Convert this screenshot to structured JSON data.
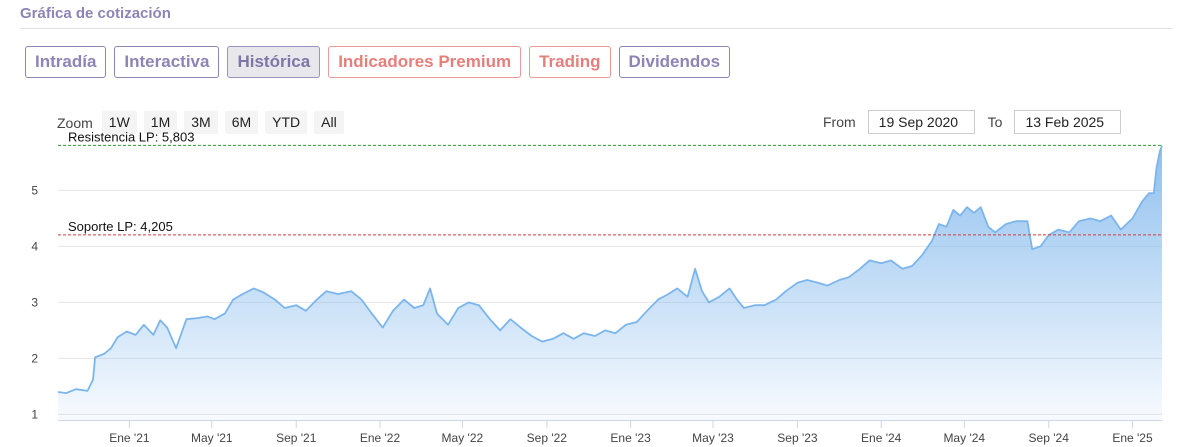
{
  "section": {
    "title": "Gráfica de cotización"
  },
  "tabs": [
    {
      "label": "Intradía",
      "style": "normal"
    },
    {
      "label": "Interactiva",
      "style": "normal"
    },
    {
      "label": "Histórica",
      "style": "active"
    },
    {
      "label": "Indicadores Premium",
      "style": "premium"
    },
    {
      "label": "Trading",
      "style": "premium"
    },
    {
      "label": "Dividendos",
      "style": "normal"
    }
  ],
  "zoom": {
    "label": "Zoom",
    "buttons": [
      "1W",
      "1M",
      "3M",
      "6M",
      "YTD",
      "All"
    ]
  },
  "range": {
    "from_label": "From",
    "from_value": "19 Sep 2020",
    "to_label": "To",
    "to_value": "13 Feb 2025"
  },
  "colors": {
    "series": "#7cb5ec",
    "resistance": "#2e9b2e",
    "support": "#d43c3c",
    "accent": "#8e84b6",
    "premium": "#e57f7b"
  },
  "chart_data": {
    "type": "area",
    "title": "",
    "xlabel": "",
    "ylabel": "",
    "xlim": [
      "2020-09-19",
      "2025-02-13"
    ],
    "ylim": [
      0.9,
      5.9
    ],
    "y_ticks": [
      1,
      2,
      3,
      4,
      5
    ],
    "x_ticks": [
      {
        "date": "2021-01-01",
        "label": "Ene '21"
      },
      {
        "date": "2021-05-01",
        "label": "May '21"
      },
      {
        "date": "2021-09-01",
        "label": "Sep '21"
      },
      {
        "date": "2022-01-01",
        "label": "Ene '22"
      },
      {
        "date": "2022-05-01",
        "label": "May '22"
      },
      {
        "date": "2022-09-01",
        "label": "Sep '22"
      },
      {
        "date": "2023-01-01",
        "label": "Ene '23"
      },
      {
        "date": "2023-05-01",
        "label": "May '23"
      },
      {
        "date": "2023-09-01",
        "label": "Sep '23"
      },
      {
        "date": "2024-01-01",
        "label": "Ene '24"
      },
      {
        "date": "2024-05-01",
        "label": "May '24"
      },
      {
        "date": "2024-09-01",
        "label": "Sep '24"
      },
      {
        "date": "2025-01-01",
        "label": "Ene '25"
      }
    ],
    "levels": [
      {
        "label": "Resistencia LP: 5,803",
        "value": 5.803,
        "kind": "resistance"
      },
      {
        "label": "Soporte LP: 4,205",
        "value": 4.205,
        "kind": "support"
      }
    ],
    "grid": true,
    "legend": "none",
    "series": [
      {
        "points": [
          [
            "2020-09-19",
            1.4
          ],
          [
            "2020-10-01",
            1.38
          ],
          [
            "2020-10-15",
            1.45
          ],
          [
            "2020-11-01",
            1.42
          ],
          [
            "2020-11-09",
            1.62
          ],
          [
            "2020-11-12",
            2.02
          ],
          [
            "2020-11-25",
            2.08
          ],
          [
            "2020-12-05",
            2.18
          ],
          [
            "2020-12-15",
            2.38
          ],
          [
            "2020-12-28",
            2.48
          ],
          [
            "2021-01-10",
            2.42
          ],
          [
            "2021-01-22",
            2.6
          ],
          [
            "2021-02-05",
            2.42
          ],
          [
            "2021-02-15",
            2.68
          ],
          [
            "2021-02-25",
            2.55
          ],
          [
            "2021-03-10",
            2.18
          ],
          [
            "2021-03-25",
            2.7
          ],
          [
            "2021-04-10",
            2.72
          ],
          [
            "2021-04-25",
            2.75
          ],
          [
            "2021-05-05",
            2.7
          ],
          [
            "2021-05-20",
            2.8
          ],
          [
            "2021-06-01",
            3.05
          ],
          [
            "2021-06-15",
            3.15
          ],
          [
            "2021-07-01",
            3.25
          ],
          [
            "2021-07-15",
            3.18
          ],
          [
            "2021-08-01",
            3.05
          ],
          [
            "2021-08-15",
            2.9
          ],
          [
            "2021-09-01",
            2.95
          ],
          [
            "2021-09-15",
            2.85
          ],
          [
            "2021-10-01",
            3.05
          ],
          [
            "2021-10-15",
            3.2
          ],
          [
            "2021-11-01",
            3.15
          ],
          [
            "2021-11-20",
            3.2
          ],
          [
            "2021-12-05",
            3.05
          ],
          [
            "2021-12-20",
            2.8
          ],
          [
            "2022-01-05",
            2.55
          ],
          [
            "2022-01-20",
            2.85
          ],
          [
            "2022-02-05",
            3.05
          ],
          [
            "2022-02-20",
            2.9
          ],
          [
            "2022-03-05",
            2.95
          ],
          [
            "2022-03-15",
            3.25
          ],
          [
            "2022-03-25",
            2.8
          ],
          [
            "2022-04-10",
            2.6
          ],
          [
            "2022-04-25",
            2.9
          ],
          [
            "2022-05-10",
            3.0
          ],
          [
            "2022-05-25",
            2.95
          ],
          [
            "2022-06-10",
            2.7
          ],
          [
            "2022-06-25",
            2.5
          ],
          [
            "2022-07-10",
            2.7
          ],
          [
            "2022-07-25",
            2.55
          ],
          [
            "2022-08-10",
            2.4
          ],
          [
            "2022-08-25",
            2.3
          ],
          [
            "2022-09-10",
            2.35
          ],
          [
            "2022-09-25",
            2.45
          ],
          [
            "2022-10-10",
            2.35
          ],
          [
            "2022-10-25",
            2.45
          ],
          [
            "2022-11-10",
            2.4
          ],
          [
            "2022-11-25",
            2.5
          ],
          [
            "2022-12-10",
            2.45
          ],
          [
            "2022-12-25",
            2.6
          ],
          [
            "2023-01-10",
            2.65
          ],
          [
            "2023-01-25",
            2.85
          ],
          [
            "2023-02-10",
            3.05
          ],
          [
            "2023-02-25",
            3.15
          ],
          [
            "2023-03-10",
            3.25
          ],
          [
            "2023-03-25",
            3.1
          ],
          [
            "2023-04-05",
            3.6
          ],
          [
            "2023-04-15",
            3.2
          ],
          [
            "2023-04-25",
            3.0
          ],
          [
            "2023-05-10",
            3.1
          ],
          [
            "2023-05-25",
            3.25
          ],
          [
            "2023-06-05",
            3.05
          ],
          [
            "2023-06-15",
            2.9
          ],
          [
            "2023-07-01",
            2.95
          ],
          [
            "2023-07-15",
            2.95
          ],
          [
            "2023-08-01",
            3.05
          ],
          [
            "2023-08-15",
            3.2
          ],
          [
            "2023-09-01",
            3.35
          ],
          [
            "2023-09-15",
            3.4
          ],
          [
            "2023-10-01",
            3.35
          ],
          [
            "2023-10-15",
            3.3
          ],
          [
            "2023-11-01",
            3.4
          ],
          [
            "2023-11-15",
            3.45
          ],
          [
            "2023-12-01",
            3.6
          ],
          [
            "2023-12-15",
            3.75
          ],
          [
            "2024-01-01",
            3.7
          ],
          [
            "2024-01-15",
            3.75
          ],
          [
            "2024-02-01",
            3.6
          ],
          [
            "2024-02-15",
            3.65
          ],
          [
            "2024-03-01",
            3.85
          ],
          [
            "2024-03-15",
            4.1
          ],
          [
            "2024-03-25",
            4.4
          ],
          [
            "2024-04-05",
            4.35
          ],
          [
            "2024-04-15",
            4.65
          ],
          [
            "2024-04-25",
            4.55
          ],
          [
            "2024-05-05",
            4.7
          ],
          [
            "2024-05-15",
            4.6
          ],
          [
            "2024-05-25",
            4.7
          ],
          [
            "2024-06-05",
            4.35
          ],
          [
            "2024-06-15",
            4.25
          ],
          [
            "2024-07-01",
            4.4
          ],
          [
            "2024-07-15",
            4.45
          ],
          [
            "2024-08-01",
            4.45
          ],
          [
            "2024-08-08",
            3.95
          ],
          [
            "2024-08-20",
            4.0
          ],
          [
            "2024-09-01",
            4.2
          ],
          [
            "2024-09-15",
            4.3
          ],
          [
            "2024-10-01",
            4.25
          ],
          [
            "2024-10-15",
            4.45
          ],
          [
            "2024-11-01",
            4.5
          ],
          [
            "2024-11-15",
            4.45
          ],
          [
            "2024-12-01",
            4.55
          ],
          [
            "2024-12-15",
            4.3
          ],
          [
            "2025-01-01",
            4.5
          ],
          [
            "2025-01-15",
            4.8
          ],
          [
            "2025-01-25",
            4.95
          ],
          [
            "2025-02-01",
            4.95
          ],
          [
            "2025-02-05",
            5.4
          ],
          [
            "2025-02-10",
            5.7
          ],
          [
            "2025-02-13",
            5.8
          ]
        ]
      }
    ]
  }
}
